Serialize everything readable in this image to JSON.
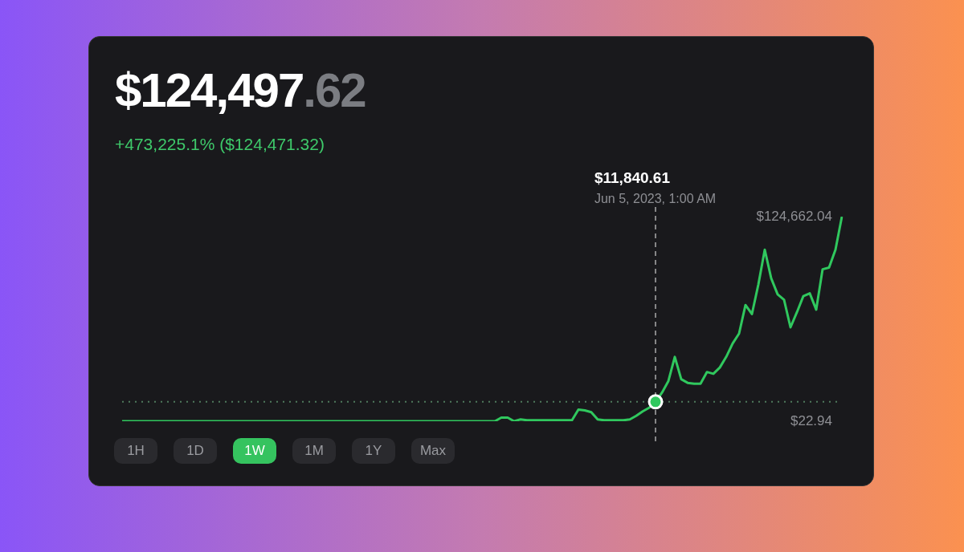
{
  "chart_data": {
    "type": "line",
    "title": "$124,497.62",
    "subtitle": "+473,225.1% ($124,471.32)",
    "categories": [
      null,
      null,
      null,
      null,
      null,
      null,
      null,
      null,
      null,
      null,
      null,
      null,
      null,
      null,
      null,
      null,
      null,
      null,
      null,
      null,
      null,
      null,
      null,
      null,
      null,
      null,
      null,
      null,
      null,
      null,
      null,
      null,
      null,
      null,
      null,
      null,
      null,
      null,
      null,
      null,
      null,
      null,
      null,
      null,
      null,
      null,
      null,
      null,
      null,
      null,
      null,
      null,
      null,
      null,
      null,
      null,
      null,
      null,
      null,
      null,
      null,
      null,
      null,
      null,
      null,
      null,
      null,
      null,
      null,
      null,
      null,
      null,
      null,
      null,
      null,
      null,
      null,
      null,
      null,
      null,
      null,
      null,
      null,
      null,
      null,
      null,
      null,
      null,
      null,
      null,
      null,
      null,
      null,
      null,
      null,
      null,
      null,
      null,
      null,
      null,
      null,
      null,
      null,
      null,
      null,
      null,
      null,
      null,
      null,
      null,
      null,
      null,
      null
    ],
    "series": [
      {
        "color": "#30c85e",
        "values": [
          22.94,
          22.94,
          22.94,
          22.94,
          22.94,
          22.94,
          22.94,
          22.94,
          22.94,
          22.94,
          22.94,
          22.94,
          22.94,
          22.94,
          22.94,
          22.94,
          22.94,
          22.94,
          22.94,
          22.94,
          22.94,
          22.94,
          22.94,
          22.94,
          22.94,
          22.94,
          22.94,
          22.94,
          22.94,
          22.94,
          22.94,
          22.94,
          22.94,
          22.94,
          22.94,
          22.94,
          22.94,
          22.94,
          22.94,
          22.94,
          22.94,
          22.94,
          22.94,
          22.94,
          22.94,
          22.94,
          22.94,
          22.94,
          22.94,
          22.94,
          22.94,
          22.94,
          22.94,
          22.94,
          22.94,
          22.94,
          22.94,
          22.94,
          22.94,
          2200,
          2200,
          22.94,
          1100,
          600,
          600,
          600,
          600,
          600,
          600,
          600,
          600,
          7100,
          6600,
          5500,
          1100,
          600,
          600,
          600,
          600,
          1100,
          3300,
          6000,
          8200,
          11840.61,
          17400,
          24500,
          39200,
          25600,
          23400,
          22900,
          22900,
          30000,
          28900,
          32700,
          39200,
          47400,
          53400,
          70800,
          65300,
          83300,
          104500,
          87100,
          77300,
          74000,
          57200,
          66400,
          76200,
          77900,
          68000,
          92600,
          93600,
          104500,
          124662.04
        ],
        "value_labels": [
          null,
          null,
          null,
          null,
          null,
          null,
          null,
          null,
          null,
          null,
          null,
          null,
          null,
          null,
          null,
          null,
          null,
          null,
          null,
          null,
          null,
          null,
          null,
          null,
          null,
          null,
          null,
          null,
          null,
          null,
          null,
          null,
          null,
          null,
          null,
          null,
          null,
          null,
          null,
          null,
          null,
          null,
          null,
          null,
          null,
          null,
          null,
          null,
          null,
          null,
          null,
          null,
          null,
          null,
          null,
          null,
          null,
          null,
          null,
          null,
          null,
          null,
          null,
          null,
          null,
          null,
          null,
          null,
          null,
          null,
          null,
          null,
          null,
          null,
          null,
          null,
          null,
          null,
          null,
          null,
          null,
          null,
          null,
          null,
          null,
          null,
          null,
          null,
          null,
          null,
          null,
          null,
          null,
          null,
          null,
          null,
          null,
          null,
          null,
          null,
          null,
          null,
          null,
          null,
          null,
          null,
          null,
          null,
          null,
          null,
          null,
          null,
          null
        ]
      }
    ],
    "ylim": [
      22.94,
      124662.04
    ],
    "yticks": [
      {
        "value": 22.94,
        "label": "$22.94"
      },
      {
        "value": 124662.04,
        "label": "$124,662.04"
      }
    ],
    "legend": false,
    "marker": "none",
    "line_style": "solid",
    "ref_lines": [
      {
        "axis": "y",
        "value": 11840.61,
        "line_style": "dotted",
        "color": "#4f7a5c"
      }
    ],
    "annotations": [
      "$11,840.61",
      "Jun 5, 2023, 1:00 AM",
      "1H",
      "1D",
      "1W",
      "1M",
      "1Y",
      "Max"
    ]
  }
}
